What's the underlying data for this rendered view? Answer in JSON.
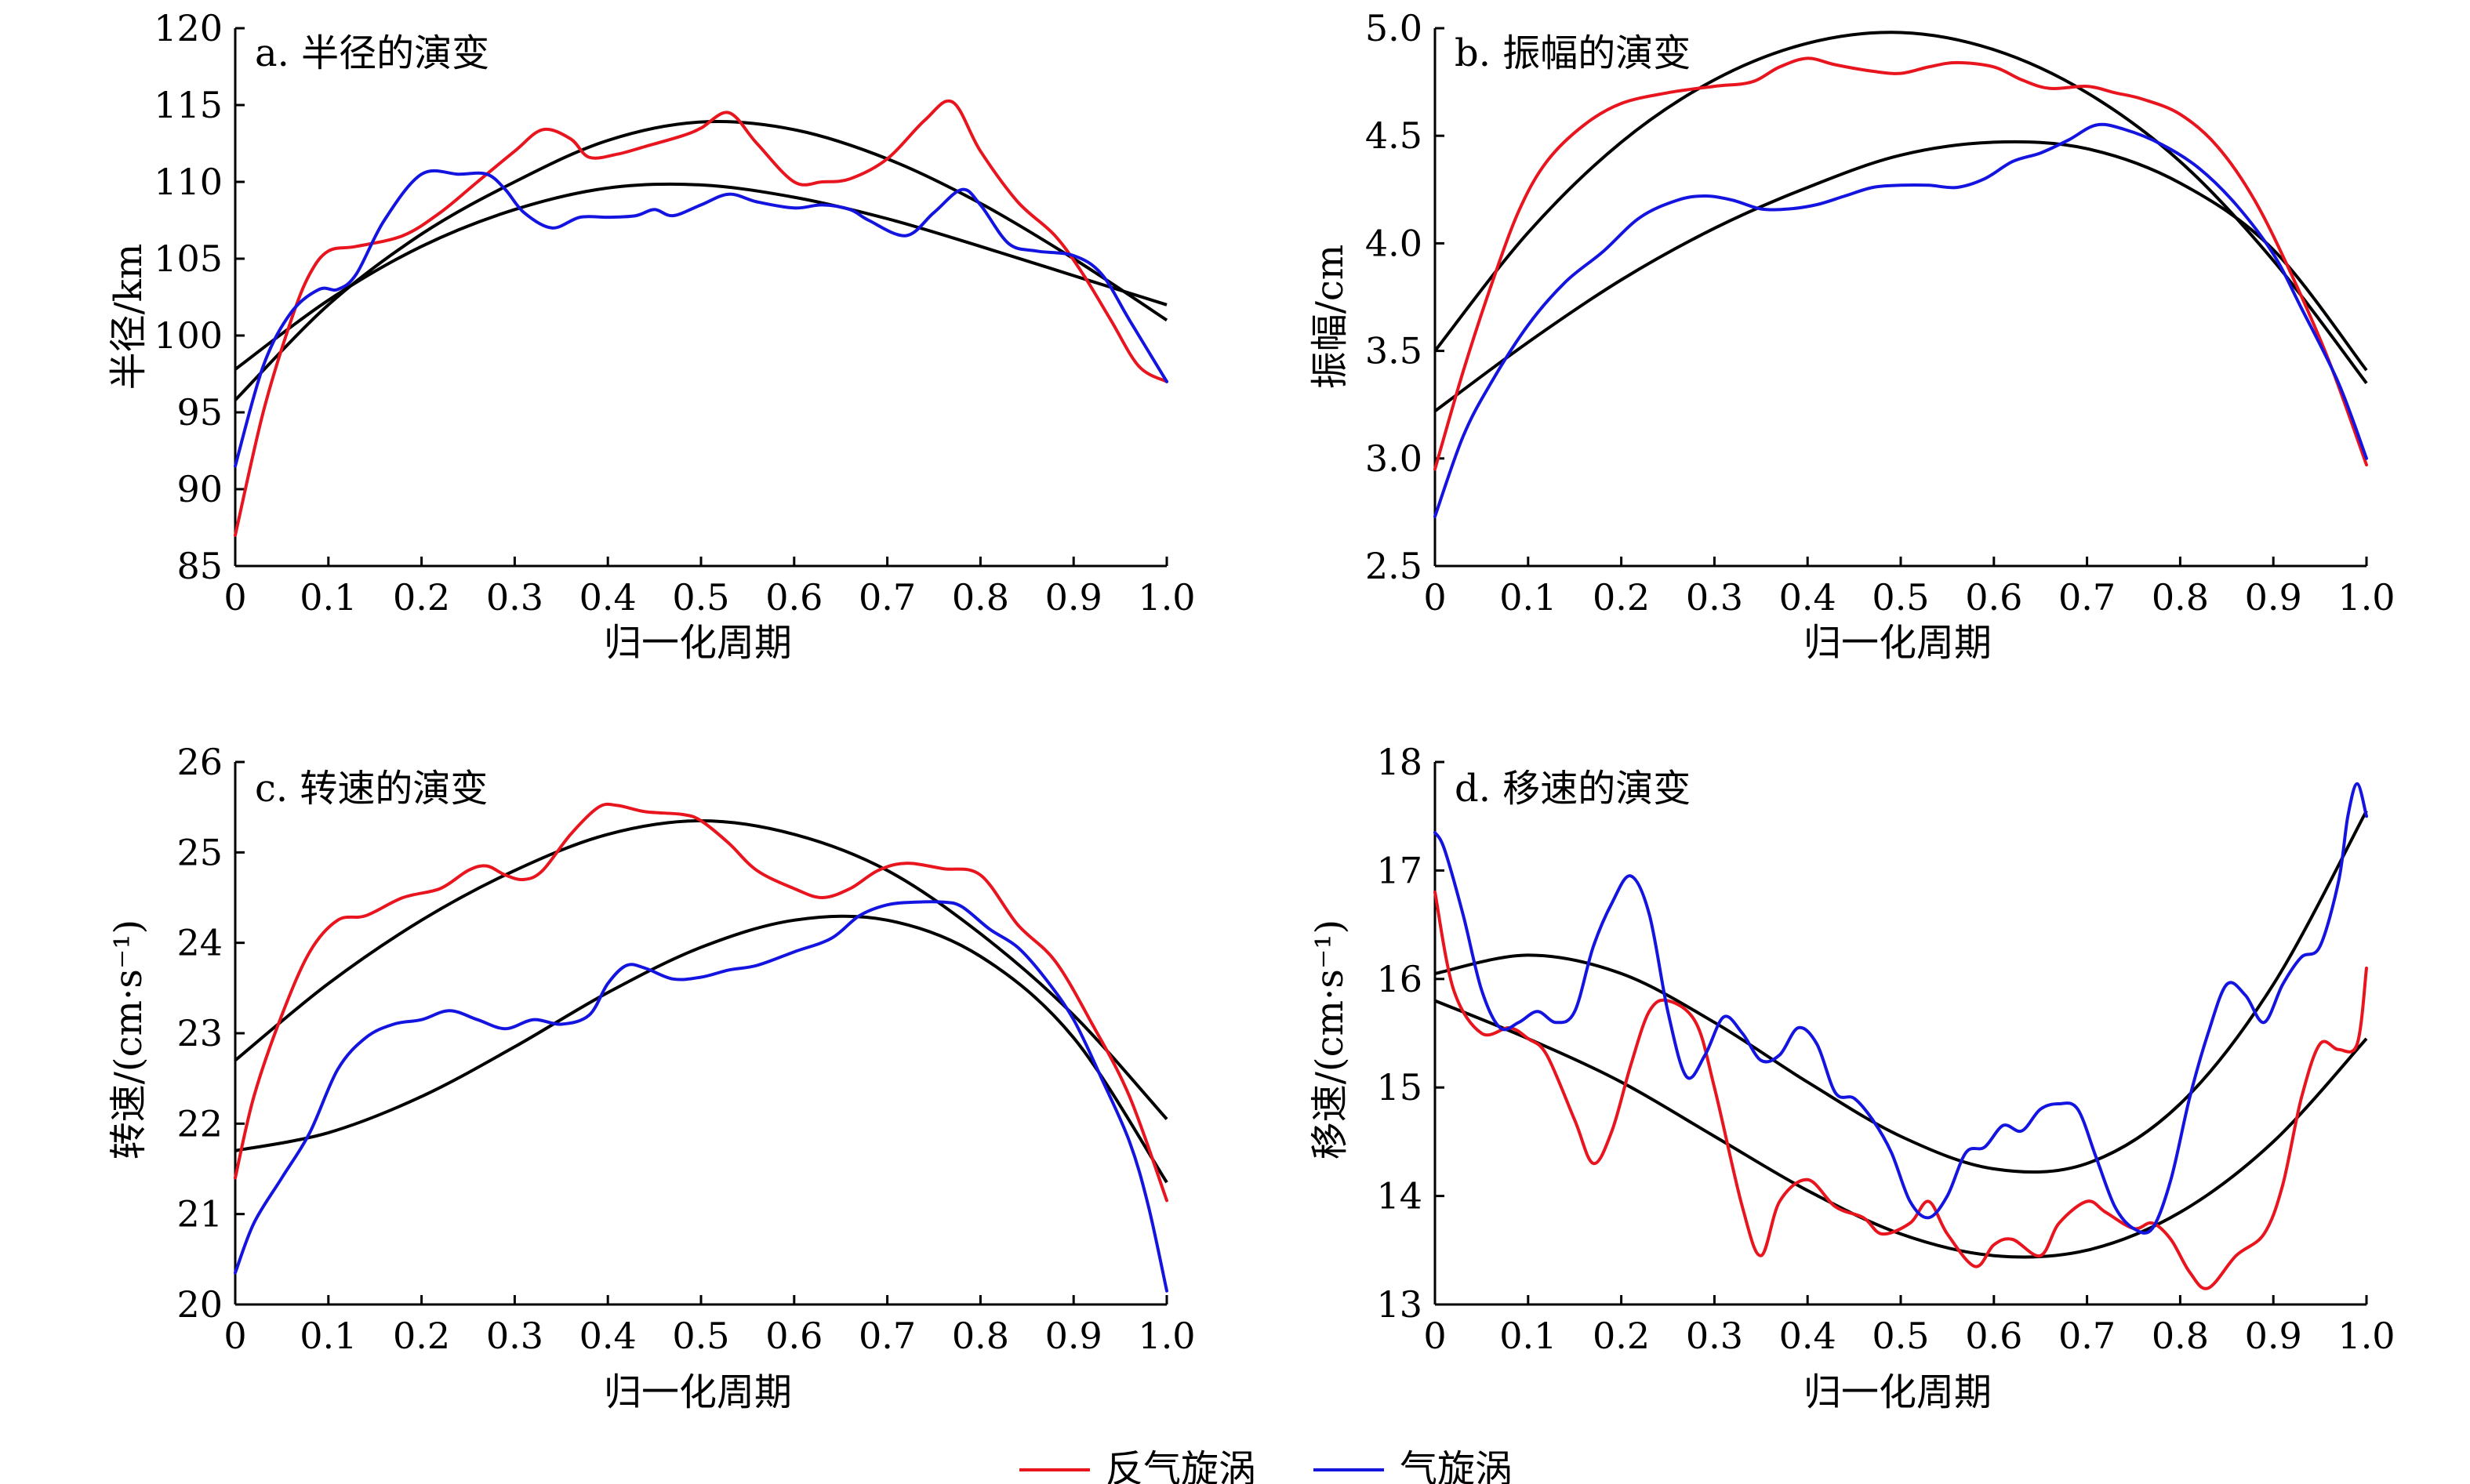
{
  "legend": {
    "position": "bottom-center",
    "items": [
      {
        "label": "反气旋涡",
        "color": "#e8141e"
      },
      {
        "label": "气旋涡",
        "color": "#1414e0"
      }
    ]
  },
  "chart_data": [
    {
      "type": "line",
      "title": "a. 半径的演变",
      "xlabel": "归一化周期",
      "ylabel": "半径/km",
      "xlim": [
        0,
        1.0
      ],
      "ylim": [
        85,
        120
      ],
      "xticks": [
        "0",
        "0.1",
        "0.2",
        "0.3",
        "0.4",
        "0.5",
        "0.6",
        "0.7",
        "0.8",
        "0.9",
        "1.0"
      ],
      "yticks": [
        "85",
        "90",
        "95",
        "100",
        "105",
        "110",
        "115",
        "120"
      ],
      "grid": false,
      "series": [
        {
          "name": "反气旋涡",
          "color": "#e8141e",
          "x": [
            0,
            0.03,
            0.06,
            0.08,
            0.1,
            0.13,
            0.18,
            0.22,
            0.26,
            0.3,
            0.33,
            0.36,
            0.38,
            0.41,
            0.44,
            0.48,
            0.5,
            0.53,
            0.56,
            0.6,
            0.63,
            0.66,
            0.7,
            0.74,
            0.77,
            0.8,
            0.84,
            0.88,
            0.91,
            0.94,
            0.97,
            1.0
          ],
          "y": [
            87,
            95,
            101,
            104,
            105.5,
            105.8,
            106.5,
            108,
            110,
            112,
            113.4,
            112.8,
            111.6,
            111.8,
            112.3,
            113,
            113.5,
            114.5,
            112.5,
            110,
            110,
            110.2,
            111.5,
            114,
            115.2,
            112,
            108.7,
            106.5,
            104,
            101,
            98,
            97
          ]
        },
        {
          "name": "气旋涡",
          "color": "#1414e0",
          "x": [
            0,
            0.03,
            0.06,
            0.09,
            0.11,
            0.13,
            0.16,
            0.2,
            0.24,
            0.27,
            0.29,
            0.31,
            0.34,
            0.37,
            0.4,
            0.43,
            0.45,
            0.47,
            0.5,
            0.53,
            0.56,
            0.6,
            0.63,
            0.66,
            0.68,
            0.72,
            0.75,
            0.78,
            0.8,
            0.83,
            0.86,
            0.9,
            0.93,
            0.96,
            1.0
          ],
          "y": [
            91.5,
            98,
            101.5,
            103,
            103,
            104,
            107.5,
            110.5,
            110.5,
            110.5,
            109.5,
            108,
            107,
            107.7,
            107.7,
            107.8,
            108.2,
            107.8,
            108.5,
            109.2,
            108.7,
            108.3,
            108.5,
            108.2,
            107.5,
            106.5,
            108,
            109.5,
            108.5,
            106,
            105.5,
            105.2,
            104,
            101,
            97
          ]
        }
      ],
      "fits": [
        {
          "x": [
            0,
            0.1,
            0.2,
            0.3,
            0.4,
            0.5,
            0.6,
            0.7,
            0.8,
            0.9,
            1.0
          ],
          "y": [
            95.8,
            102.0,
            106.6,
            110.0,
            112.7,
            113.9,
            113.4,
            111.5,
            108.6,
            105.0,
            101.0
          ]
        },
        {
          "x": [
            0,
            0.1,
            0.2,
            0.3,
            0.4,
            0.5,
            0.6,
            0.7,
            0.8,
            0.9,
            1.0
          ],
          "y": [
            97.8,
            102.3,
            105.8,
            108.2,
            109.6,
            109.8,
            109.0,
            107.6,
            105.8,
            103.9,
            102.0
          ]
        }
      ]
    },
    {
      "type": "line",
      "title": "b. 振幅的演变",
      "xlabel": "归一化周期",
      "ylabel": "振幅/cm",
      "xlim": [
        0,
        1.0
      ],
      "ylim": [
        2.5,
        5.0
      ],
      "xticks": [
        "0",
        "0.1",
        "0.2",
        "0.3",
        "0.4",
        "0.5",
        "0.6",
        "0.7",
        "0.8",
        "0.9",
        "1.0"
      ],
      "yticks": [
        "2.5",
        "3.0",
        "3.5",
        "4.0",
        "4.5",
        "5.0"
      ],
      "grid": false,
      "series": [
        {
          "name": "反气旋涡",
          "color": "#e8141e",
          "x": [
            0,
            0.03,
            0.06,
            0.09,
            0.12,
            0.16,
            0.2,
            0.25,
            0.3,
            0.34,
            0.37,
            0.4,
            0.43,
            0.47,
            0.5,
            0.53,
            0.56,
            0.6,
            0.63,
            0.66,
            0.7,
            0.73,
            0.76,
            0.8,
            0.84,
            0.88,
            0.92,
            0.96,
            1.0
          ],
          "y": [
            2.95,
            3.4,
            3.8,
            4.15,
            4.38,
            4.55,
            4.65,
            4.7,
            4.73,
            4.75,
            4.82,
            4.86,
            4.83,
            4.8,
            4.79,
            4.82,
            4.84,
            4.82,
            4.76,
            4.72,
            4.73,
            4.7,
            4.67,
            4.6,
            4.45,
            4.2,
            3.85,
            3.45,
            2.97
          ]
        },
        {
          "name": "气旋涡",
          "color": "#1414e0",
          "x": [
            0,
            0.03,
            0.06,
            0.1,
            0.14,
            0.18,
            0.22,
            0.26,
            0.29,
            0.32,
            0.35,
            0.38,
            0.41,
            0.44,
            0.47,
            0.5,
            0.53,
            0.56,
            0.59,
            0.62,
            0.65,
            0.68,
            0.71,
            0.74,
            0.78,
            0.82,
            0.86,
            0.9,
            0.93,
            0.97,
            1.0
          ],
          "y": [
            2.73,
            3.1,
            3.35,
            3.62,
            3.82,
            3.96,
            4.12,
            4.2,
            4.22,
            4.2,
            4.16,
            4.16,
            4.18,
            4.22,
            4.26,
            4.27,
            4.27,
            4.26,
            4.3,
            4.38,
            4.42,
            4.48,
            4.55,
            4.53,
            4.46,
            4.35,
            4.18,
            3.95,
            3.7,
            3.35,
            3.0
          ]
        }
      ],
      "fits": [
        {
          "x": [
            0,
            0.1,
            0.2,
            0.3,
            0.4,
            0.5,
            0.6,
            0.7,
            0.8,
            0.9,
            1.0
          ],
          "y": [
            3.5,
            4.05,
            4.47,
            4.76,
            4.93,
            4.98,
            4.9,
            4.7,
            4.38,
            3.92,
            3.35
          ]
        },
        {
          "x": [
            0,
            0.1,
            0.2,
            0.3,
            0.4,
            0.5,
            0.6,
            0.7,
            0.8,
            0.9,
            1.0
          ],
          "y": [
            3.22,
            3.54,
            3.83,
            4.07,
            4.26,
            4.41,
            4.47,
            4.44,
            4.28,
            3.97,
            3.41
          ]
        }
      ]
    },
    {
      "type": "line",
      "title": "c. 转速的演变",
      "xlabel": "归一化周期",
      "ylabel": "转速/(cm·s⁻¹)",
      "xlim": [
        0,
        1.0
      ],
      "ylim": [
        20,
        26
      ],
      "xticks": [
        "0",
        "0.1",
        "0.2",
        "0.3",
        "0.4",
        "0.5",
        "0.6",
        "0.7",
        "0.8",
        "0.9",
        "1.0"
      ],
      "yticks": [
        "20",
        "21",
        "22",
        "23",
        "24",
        "25",
        "26"
      ],
      "grid": false,
      "series": [
        {
          "name": "反气旋涡",
          "color": "#e8141e",
          "x": [
            0,
            0.02,
            0.05,
            0.08,
            0.11,
            0.14,
            0.18,
            0.22,
            0.25,
            0.27,
            0.29,
            0.31,
            0.33,
            0.36,
            0.39,
            0.41,
            0.44,
            0.48,
            0.5,
            0.53,
            0.56,
            0.6,
            0.63,
            0.66,
            0.69,
            0.72,
            0.76,
            0.8,
            0.84,
            0.88,
            0.92,
            0.96,
            1.0
          ],
          "y": [
            21.4,
            22.3,
            23.2,
            23.9,
            24.25,
            24.3,
            24.5,
            24.6,
            24.8,
            24.85,
            24.75,
            24.7,
            24.8,
            25.2,
            25.5,
            25.52,
            25.45,
            25.42,
            25.35,
            25.1,
            24.8,
            24.6,
            24.5,
            24.6,
            24.8,
            24.88,
            24.82,
            24.75,
            24.2,
            23.8,
            23.1,
            22.3,
            21.15
          ]
        },
        {
          "name": "气旋涡",
          "color": "#1414e0",
          "x": [
            0,
            0.02,
            0.05,
            0.08,
            0.11,
            0.14,
            0.17,
            0.2,
            0.23,
            0.26,
            0.29,
            0.32,
            0.35,
            0.38,
            0.4,
            0.42,
            0.44,
            0.47,
            0.5,
            0.53,
            0.56,
            0.6,
            0.64,
            0.67,
            0.7,
            0.73,
            0.76,
            0.78,
            0.81,
            0.84,
            0.87,
            0.9,
            0.93,
            0.96,
            0.98,
            1.0
          ],
          "y": [
            20.35,
            20.9,
            21.4,
            21.9,
            22.6,
            22.95,
            23.1,
            23.15,
            23.25,
            23.15,
            23.05,
            23.15,
            23.1,
            23.2,
            23.55,
            23.75,
            23.72,
            23.6,
            23.62,
            23.7,
            23.75,
            23.9,
            24.05,
            24.3,
            24.42,
            24.45,
            24.45,
            24.4,
            24.15,
            23.95,
            23.6,
            23.15,
            22.5,
            21.8,
            21.1,
            20.15
          ]
        }
      ],
      "fits": [
        {
          "x": [
            0,
            0.1,
            0.2,
            0.3,
            0.4,
            0.5,
            0.6,
            0.7,
            0.8,
            0.9,
            1.0
          ],
          "y": [
            22.7,
            23.55,
            24.25,
            24.8,
            25.2,
            25.35,
            25.2,
            24.8,
            24.1,
            23.2,
            22.05
          ]
        },
        {
          "x": [
            0,
            0.1,
            0.2,
            0.3,
            0.4,
            0.5,
            0.6,
            0.7,
            0.8,
            0.9,
            1.0
          ],
          "y": [
            21.7,
            21.9,
            22.3,
            22.85,
            23.45,
            23.95,
            24.25,
            24.25,
            23.85,
            22.95,
            21.35
          ]
        }
      ]
    },
    {
      "type": "line",
      "title": "d. 移速的演变",
      "xlabel": "归一化周期",
      "ylabel": "移速/(cm·s⁻¹)",
      "xlim": [
        0,
        1.0
      ],
      "ylim": [
        13,
        18
      ],
      "xticks": [
        "0",
        "0.1",
        "0.2",
        "0.3",
        "0.4",
        "0.5",
        "0.6",
        "0.7",
        "0.8",
        "0.9",
        "1.0"
      ],
      "yticks": [
        "13",
        "14",
        "15",
        "16",
        "17",
        "18"
      ],
      "grid": false,
      "series": [
        {
          "name": "反气旋涡",
          "color": "#e8141e",
          "x": [
            0,
            0.02,
            0.05,
            0.08,
            0.1,
            0.12,
            0.15,
            0.17,
            0.19,
            0.21,
            0.23,
            0.25,
            0.28,
            0.3,
            0.33,
            0.35,
            0.37,
            0.4,
            0.43,
            0.46,
            0.48,
            0.51,
            0.53,
            0.55,
            0.58,
            0.6,
            0.62,
            0.65,
            0.67,
            0.7,
            0.72,
            0.75,
            0.77,
            0.79,
            0.81,
            0.83,
            0.86,
            0.89,
            0.91,
            0.93,
            0.95,
            0.97,
            0.99,
            1.0
          ],
          "y": [
            16.8,
            15.9,
            15.5,
            15.55,
            15.45,
            15.3,
            14.7,
            14.3,
            14.6,
            15.2,
            15.7,
            15.8,
            15.6,
            15.0,
            13.9,
            13.45,
            13.95,
            14.15,
            13.9,
            13.8,
            13.65,
            13.75,
            13.95,
            13.65,
            13.35,
            13.55,
            13.6,
            13.45,
            13.75,
            13.95,
            13.85,
            13.7,
            13.75,
            13.6,
            13.3,
            13.15,
            13.45,
            13.65,
            14.1,
            14.9,
            15.4,
            15.35,
            15.4,
            16.1
          ]
        },
        {
          "name": "气旋涡",
          "color": "#1414e0",
          "x": [
            0,
            0.01,
            0.03,
            0.05,
            0.07,
            0.09,
            0.11,
            0.13,
            0.15,
            0.17,
            0.19,
            0.21,
            0.23,
            0.25,
            0.27,
            0.29,
            0.31,
            0.33,
            0.35,
            0.37,
            0.39,
            0.41,
            0.43,
            0.45,
            0.47,
            0.49,
            0.51,
            0.53,
            0.55,
            0.57,
            0.59,
            0.61,
            0.63,
            0.65,
            0.67,
            0.69,
            0.71,
            0.73,
            0.75,
            0.77,
            0.79,
            0.81,
            0.83,
            0.85,
            0.87,
            0.89,
            0.91,
            0.93,
            0.95,
            0.97,
            0.98,
            0.99,
            1.0
          ],
          "y": [
            17.35,
            17.2,
            16.6,
            15.9,
            15.55,
            15.6,
            15.7,
            15.6,
            15.7,
            16.3,
            16.7,
            16.95,
            16.6,
            15.7,
            15.1,
            15.3,
            15.65,
            15.5,
            15.25,
            15.3,
            15.55,
            15.4,
            14.95,
            14.9,
            14.7,
            14.4,
            13.95,
            13.8,
            14.0,
            14.4,
            14.45,
            14.65,
            14.6,
            14.8,
            14.85,
            14.8,
            14.35,
            13.9,
            13.7,
            13.7,
            14.15,
            14.9,
            15.5,
            15.95,
            15.85,
            15.6,
            15.95,
            16.2,
            16.3,
            16.9,
            17.5,
            17.8,
            17.5
          ]
        }
      ],
      "fits": [
        {
          "x": [
            0,
            0.1,
            0.2,
            0.3,
            0.4,
            0.5,
            0.6,
            0.7,
            0.8,
            0.9,
            1.0
          ],
          "y": [
            16.05,
            16.22,
            16.05,
            15.6,
            15.05,
            14.55,
            14.25,
            14.3,
            14.85,
            15.95,
            17.55
          ]
        },
        {
          "x": [
            0,
            0.1,
            0.2,
            0.3,
            0.4,
            0.5,
            0.6,
            0.7,
            0.8,
            0.9,
            1.0
          ],
          "y": [
            15.8,
            15.45,
            15.05,
            14.55,
            14.05,
            13.65,
            13.45,
            13.5,
            13.85,
            14.5,
            15.45
          ]
        }
      ]
    }
  ]
}
